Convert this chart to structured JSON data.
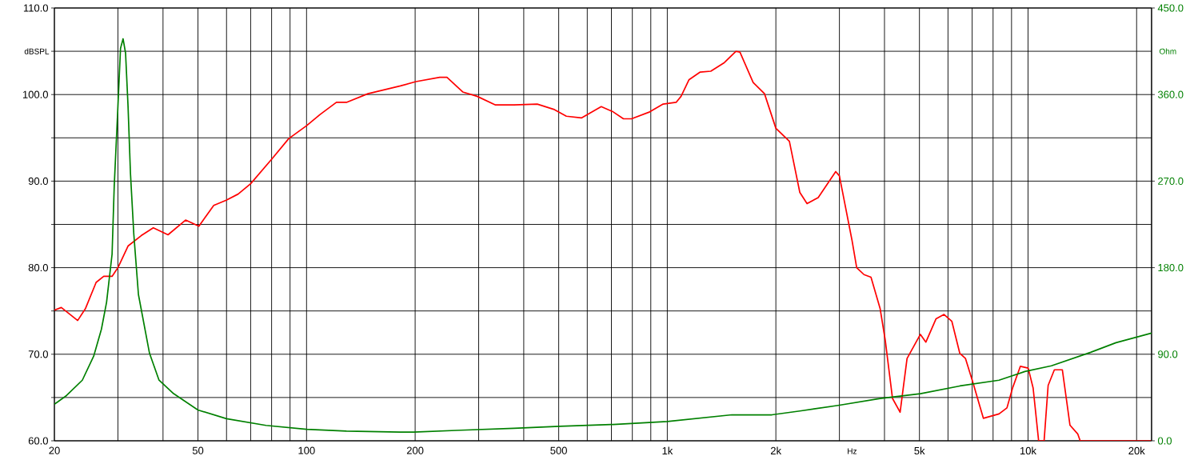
{
  "chart_data": {
    "type": "line",
    "xlabel": "Hz",
    "ylabel": "dBSPL",
    "y2label": "Ohm",
    "log": "x",
    "grid": true,
    "xlim": [
      20,
      22000
    ],
    "ylim": [
      60,
      110
    ],
    "y2lim": [
      0,
      450
    ],
    "xticks": [
      20,
      {
        "value": 30,
        "label": null
      },
      {
        "value": 40,
        "label": null
      },
      50,
      {
        "value": 60,
        "label": null
      },
      {
        "value": 70,
        "label": null
      },
      {
        "value": 80,
        "label": null
      },
      {
        "value": 90,
        "label": null
      },
      100,
      200,
      {
        "value": 300,
        "label": null
      },
      {
        "value": 400,
        "label": null
      },
      500,
      {
        "value": 600,
        "label": null
      },
      {
        "value": 700,
        "label": null
      },
      {
        "value": 800,
        "label": null
      },
      {
        "value": 900,
        "label": null
      },
      {
        "value": 1000,
        "label": "1k"
      },
      {
        "value": 2000,
        "label": "2k"
      },
      {
        "value": 3000,
        "label": null
      },
      {
        "value": 4000,
        "label": null
      },
      {
        "value": 5000,
        "label": "5k"
      },
      {
        "value": 6000,
        "label": null
      },
      {
        "value": 7000,
        "label": null
      },
      {
        "value": 8000,
        "label": null
      },
      {
        "value": 9000,
        "label": null
      },
      {
        "value": 10000,
        "label": "10k"
      },
      {
        "value": 20000,
        "label": "20k"
      }
    ],
    "yticks": [
      {
        "value": 60,
        "label": "60.0"
      },
      {
        "value": 65,
        "label": null
      },
      {
        "value": 70,
        "label": "70.0"
      },
      {
        "value": 75,
        "label": null
      },
      {
        "value": 80,
        "label": "80.0"
      },
      {
        "value": 85,
        "label": null
      },
      {
        "value": 90,
        "label": "90.0"
      },
      {
        "value": 95,
        "label": null
      },
      {
        "value": 100,
        "label": "100.0"
      },
      {
        "value": 105,
        "label": null
      },
      {
        "value": 110,
        "label": "110.0"
      }
    ],
    "y2ticks": [
      {
        "value": 0,
        "label": "0.0"
      },
      {
        "value": 90,
        "label": "90.0"
      },
      {
        "value": 180,
        "label": "180.0"
      },
      {
        "value": 270,
        "label": "270.0"
      },
      {
        "value": 360,
        "label": "360.0"
      },
      {
        "value": 450,
        "label": "450.0"
      }
    ],
    "series": [
      {
        "color": "#ff0000",
        "x": [
          20,
          20.9,
          23.2,
          24.4,
          26.1,
          27.4,
          28.9,
          30,
          32,
          34.8,
          37.6,
          41.3,
          46.2,
          50.3,
          55.3,
          59.9,
          64.6,
          70,
          80.3,
          89.2,
          100,
          109,
          121,
          129,
          148,
          182,
          201,
          234,
          245,
          271,
          297,
          334,
          376,
          436,
          484,
          525,
          578,
          656,
          708,
          756,
          796,
          894,
          974,
          1058,
          1092,
          1148,
          1234,
          1320,
          1440,
          1550,
          1590,
          1730,
          1860,
          2000,
          2180,
          2330,
          2440,
          2620,
          2930,
          3000,
          3250,
          3350,
          3510,
          3670,
          3890,
          4020,
          4210,
          4420,
          4620,
          5030,
          5210,
          5560,
          5850,
          6150,
          6470,
          6710,
          7050,
          7520,
          8310,
          8740,
          9060,
          9520,
          10010,
          10330,
          10700,
          11080,
          11370,
          11830,
          12450,
          13070,
          13730,
          13950,
          22000
        ],
        "values": [
          75.1,
          75.4,
          73.9,
          75.3,
          78.3,
          79.0,
          79.0,
          80.0,
          82.5,
          83.7,
          84.6,
          83.8,
          85.5,
          84.8,
          87.2,
          87.8,
          88.5,
          89.7,
          92.6,
          94.9,
          96.4,
          97.7,
          99.1,
          99.1,
          100.1,
          101.0,
          101.5,
          102.0,
          102.0,
          100.3,
          99.8,
          98.8,
          98.8,
          98.9,
          98.3,
          97.5,
          97.3,
          98.6,
          98.0,
          97.2,
          97.2,
          98.0,
          98.9,
          99.1,
          99.8,
          101.7,
          102.6,
          102.7,
          103.7,
          105.0,
          104.9,
          101.4,
          100.1,
          96.1,
          94.6,
          88.7,
          87.4,
          88.1,
          91.1,
          90.6,
          83.2,
          80.0,
          79.2,
          78.9,
          75.3,
          71.6,
          64.9,
          63.3,
          69.5,
          72.3,
          71.4,
          74.1,
          74.6,
          73.8,
          70.1,
          69.5,
          66.6,
          62.6,
          63.1,
          63.8,
          66.1,
          68.6,
          68.4,
          66.1,
          60.0,
          60.0,
          66.4,
          68.2,
          68.2,
          61.8,
          60.8,
          60.0,
          60.0
        ]
      },
      {
        "color": "#008000",
        "axis": "y2",
        "x": [
          20,
          21.6,
          23.9,
          25.7,
          27,
          27.9,
          28.9,
          29.3,
          30,
          30.5,
          31,
          31.5,
          32,
          32.5,
          33.2,
          34.2,
          36.7,
          39,
          42.8,
          50,
          60,
          77.2,
          100,
          129,
          182,
          198,
          268,
          376,
          503,
          708,
          1000,
          1510,
          1950,
          2330,
          3000,
          3890,
          5030,
          6470,
          8310,
          9800,
          11610,
          14920,
          17530,
          22000
        ],
        "values": [
          38,
          47,
          63,
          88,
          116,
          144,
          194,
          265,
          348,
          408,
          418,
          403,
          348,
          278,
          215,
          152,
          91,
          63,
          49,
          32,
          23,
          16,
          12,
          10,
          9,
          9,
          11,
          13,
          15,
          17,
          20,
          27,
          27,
          31,
          37,
          44,
          49,
          57,
          63,
          72,
          78,
          92,
          102,
          112
        ]
      }
    ]
  }
}
